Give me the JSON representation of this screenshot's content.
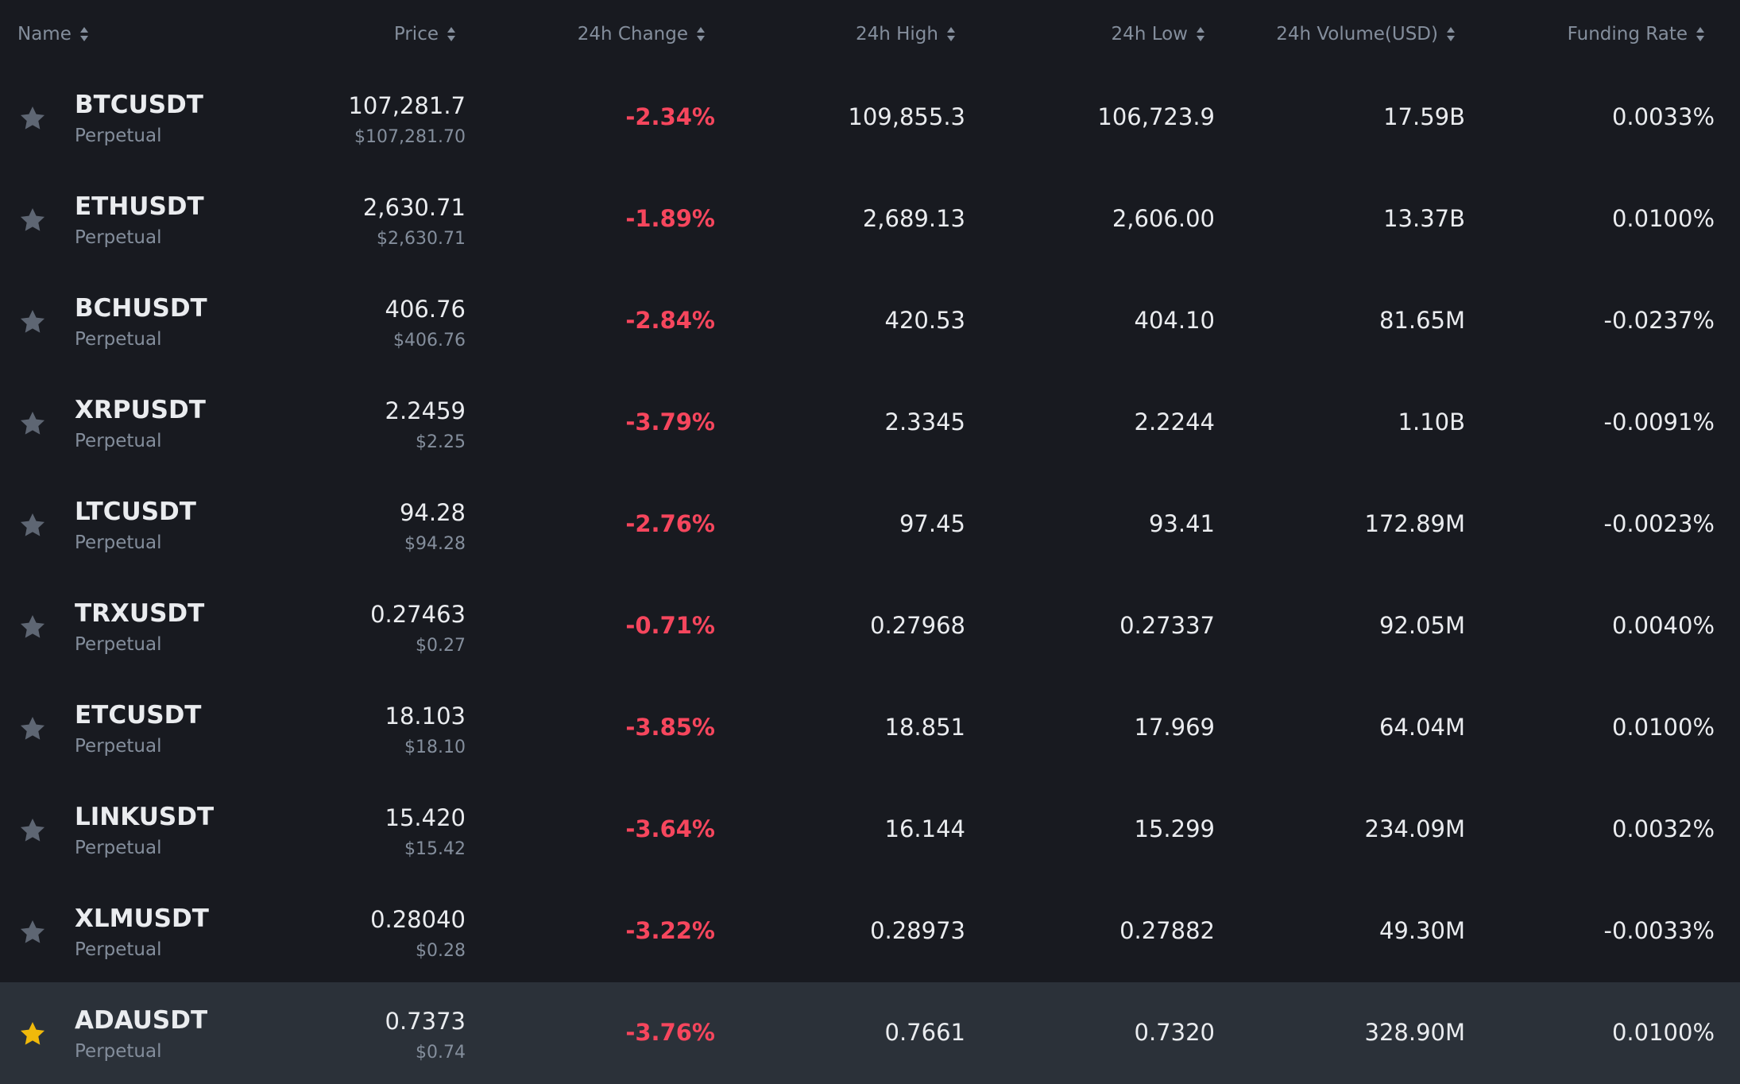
{
  "colors": {
    "background": "#181a20",
    "row_highlight": "#2b3139",
    "text_primary": "#eaecef",
    "text_secondary": "#848e9c",
    "negative": "#f6465d",
    "star_inactive": "#5e6673",
    "star_active": "#f0b90b"
  },
  "header": {
    "name": "Name",
    "price": "Price",
    "change": "24h Change",
    "high": "24h High",
    "low": "24h Low",
    "volume": "24h Volume(USD)",
    "funding": "Funding Rate",
    "sort_icon": "sort-icon"
  },
  "rows": [
    {
      "symbol": "BTCUSDT",
      "type": "Perpetual",
      "price": "107,281.7",
      "usd": "$107,281.70",
      "change": "-2.34%",
      "high": "109,855.3",
      "low": "106,723.9",
      "volume": "17.59B",
      "funding": "0.0033%",
      "favorite": false
    },
    {
      "symbol": "ETHUSDT",
      "type": "Perpetual",
      "price": "2,630.71",
      "usd": "$2,630.71",
      "change": "-1.89%",
      "high": "2,689.13",
      "low": "2,606.00",
      "volume": "13.37B",
      "funding": "0.0100%",
      "favorite": false
    },
    {
      "symbol": "BCHUSDT",
      "type": "Perpetual",
      "price": "406.76",
      "usd": "$406.76",
      "change": "-2.84%",
      "high": "420.53",
      "low": "404.10",
      "volume": "81.65M",
      "funding": "-0.0237%",
      "favorite": false
    },
    {
      "symbol": "XRPUSDT",
      "type": "Perpetual",
      "price": "2.2459",
      "usd": "$2.25",
      "change": "-3.79%",
      "high": "2.3345",
      "low": "2.2244",
      "volume": "1.10B",
      "funding": "-0.0091%",
      "favorite": false
    },
    {
      "symbol": "LTCUSDT",
      "type": "Perpetual",
      "price": "94.28",
      "usd": "$94.28",
      "change": "-2.76%",
      "high": "97.45",
      "low": "93.41",
      "volume": "172.89M",
      "funding": "-0.0023%",
      "favorite": false
    },
    {
      "symbol": "TRXUSDT",
      "type": "Perpetual",
      "price": "0.27463",
      "usd": "$0.27",
      "change": "-0.71%",
      "high": "0.27968",
      "low": "0.27337",
      "volume": "92.05M",
      "funding": "0.0040%",
      "favorite": false
    },
    {
      "symbol": "ETCUSDT",
      "type": "Perpetual",
      "price": "18.103",
      "usd": "$18.10",
      "change": "-3.85%",
      "high": "18.851",
      "low": "17.969",
      "volume": "64.04M",
      "funding": "0.0100%",
      "favorite": false
    },
    {
      "symbol": "LINKUSDT",
      "type": "Perpetual",
      "price": "15.420",
      "usd": "$15.42",
      "change": "-3.64%",
      "high": "16.144",
      "low": "15.299",
      "volume": "234.09M",
      "funding": "0.0032%",
      "favorite": false
    },
    {
      "symbol": "XLMUSDT",
      "type": "Perpetual",
      "price": "0.28040",
      "usd": "$0.28",
      "change": "-3.22%",
      "high": "0.28973",
      "low": "0.27882",
      "volume": "49.30M",
      "funding": "-0.0033%",
      "favorite": false
    },
    {
      "symbol": "ADAUSDT",
      "type": "Perpetual",
      "price": "0.7373",
      "usd": "$0.74",
      "change": "-3.76%",
      "high": "0.7661",
      "low": "0.7320",
      "volume": "328.90M",
      "funding": "0.0100%",
      "favorite": true
    }
  ]
}
